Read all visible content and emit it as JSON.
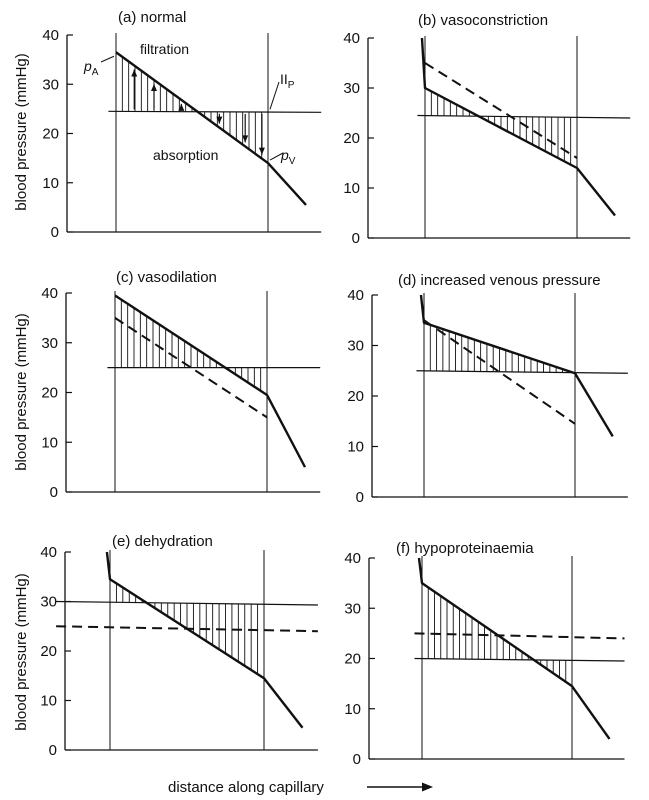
{
  "chart_data": [
    {
      "type": "line",
      "title": "(a)  normal",
      "ylabel": "blood pressure (mmHg)",
      "ylim": [
        0,
        40
      ],
      "yticks": [
        "0",
        "10",
        "20",
        "30",
        "40"
      ],
      "series": [
        {
          "name": "",
          "role": "capillary",
          "style": "solid",
          "points": [
            [
              0,
              36.5
            ],
            [
              1,
              14
            ]
          ],
          "lead_in": null,
          "lead_out": [
            1.25,
            5.5
          ]
        },
        {
          "name": "",
          "role": "oncotic",
          "style": "solid",
          "points": [
            [
              -0.05,
              24.5
            ],
            [
              1.35,
              24.3
            ]
          ]
        }
      ],
      "hatch": {
        "between": "capillary-oncotic",
        "x_range": [
          0,
          1
        ]
      },
      "arrows": true,
      "annotations": [
        {
          "id": "pA_p",
          "text": "p",
          "sub": "A"
        },
        {
          "id": "filtration",
          "text": "filtration"
        },
        {
          "id": "piP",
          "text": "II",
          "sub": "P"
        },
        {
          "id": "absorption",
          "text": "absorption"
        },
        {
          "id": "pV_p",
          "text": "p",
          "sub": "V"
        }
      ]
    },
    {
      "type": "line",
      "title": "(b)  vasoconstriction",
      "ylabel": "",
      "ylim": [
        0,
        40
      ],
      "yticks": [
        "0",
        "10",
        "20",
        "30",
        "40"
      ],
      "series": [
        {
          "name": "",
          "role": "capillary",
          "style": "solid",
          "points": [
            [
              0,
              30
            ],
            [
              1,
              14
            ]
          ],
          "lead_in": [
            -0.02,
            40
          ],
          "lead_out": [
            1.25,
            4.5
          ]
        },
        {
          "name": "",
          "role": "normal",
          "style": "dashed",
          "points": [
            [
              0,
              35
            ],
            [
              1,
              16
            ]
          ]
        },
        {
          "name": "",
          "role": "oncotic",
          "style": "solid",
          "points": [
            [
              -0.05,
              24.5
            ],
            [
              1.35,
              24
            ]
          ]
        }
      ],
      "hatch": {
        "between": "capillary-oncotic",
        "x_range": [
          0,
          1
        ]
      },
      "arrows": false,
      "annotations": []
    },
    {
      "type": "line",
      "title": "(c)  vasodilation",
      "ylabel": "blood pressure (mmHg)",
      "ylim": [
        0,
        40
      ],
      "yticks": [
        "0",
        "10",
        "20",
        "30",
        "40"
      ],
      "series": [
        {
          "name": "",
          "role": "capillary",
          "style": "solid",
          "points": [
            [
              0,
              39.5
            ],
            [
              1,
              19.5
            ]
          ],
          "lead_in": null,
          "lead_out": [
            1.25,
            5
          ]
        },
        {
          "name": "",
          "role": "normal",
          "style": "dashed",
          "points": [
            [
              0,
              35
            ],
            [
              1,
              15
            ]
          ]
        },
        {
          "name": "",
          "role": "oncotic",
          "style": "solid",
          "points": [
            [
              -0.05,
              25
            ],
            [
              1.35,
              25
            ]
          ]
        }
      ],
      "hatch": {
        "between": "capillary-oncotic",
        "x_range": [
          0,
          1
        ]
      },
      "arrows": false,
      "annotations": []
    },
    {
      "type": "line",
      "title": "(d)  increased venous pressure",
      "ylabel": "",
      "ylim": [
        0,
        40
      ],
      "yticks": [
        "0",
        "10",
        "20",
        "30",
        "40"
      ],
      "series": [
        {
          "name": "",
          "role": "capillary",
          "style": "solid",
          "points": [
            [
              0,
              34.5
            ],
            [
              1,
              24.5
            ]
          ],
          "lead_in": [
            -0.02,
            40
          ],
          "lead_out": [
            1.25,
            12
          ]
        },
        {
          "name": "",
          "role": "normal",
          "style": "dashed",
          "points": [
            [
              0,
              35
            ],
            [
              1,
              14.5
            ]
          ]
        },
        {
          "name": "",
          "role": "oncotic",
          "style": "solid",
          "points": [
            [
              -0.05,
              25
            ],
            [
              1.35,
              24.5
            ]
          ]
        }
      ],
      "hatch": {
        "between": "capillary-oncotic",
        "x_range": [
          0,
          1
        ]
      },
      "arrows": false,
      "annotations": []
    },
    {
      "type": "line",
      "title": "(e)  dehydration",
      "ylabel": "blood pressure (mmHg)",
      "ylim": [
        0,
        40
      ],
      "yticks": [
        "0",
        "10",
        "20",
        "30",
        "40"
      ],
      "series": [
        {
          "name": "",
          "role": "capillary",
          "style": "solid",
          "points": [
            [
              0,
              34.5
            ],
            [
              1,
              14.5
            ]
          ],
          "lead_in": [
            -0.02,
            40
          ],
          "lead_out": [
            1.25,
            4.5
          ]
        },
        {
          "name": "",
          "role": "oncotic",
          "style": "solid",
          "points": [
            [
              -0.35,
              30
            ],
            [
              1.35,
              29.3
            ]
          ]
        },
        {
          "name": "",
          "role": "normal",
          "style": "dashed",
          "points": [
            [
              -0.35,
              25
            ],
            [
              1.35,
              24
            ]
          ]
        }
      ],
      "hatch": {
        "between": "capillary-oncotic",
        "x_range": [
          0,
          1
        ]
      },
      "arrows": false,
      "annotations": []
    },
    {
      "type": "line",
      "title": "(f)  hypoproteinaemia",
      "ylabel": "",
      "ylim": [
        0,
        40
      ],
      "yticks": [
        "0",
        "10",
        "20",
        "30",
        "40"
      ],
      "series": [
        {
          "name": "",
          "role": "capillary",
          "style": "solid",
          "points": [
            [
              0,
              35
            ],
            [
              1,
              14.5
            ]
          ],
          "lead_in": [
            -0.02,
            40
          ],
          "lead_out": [
            1.25,
            4
          ]
        },
        {
          "name": "",
          "role": "oncotic",
          "style": "solid",
          "points": [
            [
              -0.05,
              20
            ],
            [
              1.35,
              19.5
            ]
          ]
        },
        {
          "name": "",
          "role": "normal",
          "style": "dashed",
          "points": [
            [
              -0.05,
              25
            ],
            [
              1.35,
              24
            ]
          ]
        }
      ],
      "hatch": {
        "between": "capillary-oncotic",
        "x_range": [
          0,
          1
        ]
      },
      "arrows": false,
      "annotations": []
    }
  ],
  "xlabel": "distance along capillary",
  "colors": {
    "ink": "#111111",
    "background": "#ffffff"
  }
}
